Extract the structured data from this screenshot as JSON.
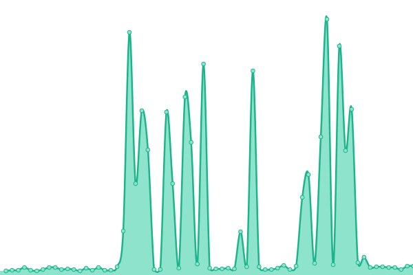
{
  "chart_data": {
    "type": "area",
    "values": [
      1,
      2,
      2,
      6,
      2,
      1,
      3,
      6,
      6,
      3,
      4,
      3,
      1,
      5,
      2,
      6,
      2,
      2,
      7,
      59,
      348,
      128,
      234,
      177,
      3,
      3,
      232,
      128,
      5,
      254,
      188,
      11,
      302,
      5,
      4,
      4,
      5,
      4,
      58,
      7,
      292,
      7,
      3,
      3,
      5,
      9,
      3,
      8,
      108,
      141,
      12,
      196,
      367,
      10,
      328,
      176,
      236,
      13,
      21,
      6,
      7,
      7,
      6,
      6,
      3,
      8,
      8
    ],
    "ylim": [
      0,
      395
    ],
    "color": "#1db48c",
    "fill_color": "#8ee3cd"
  }
}
